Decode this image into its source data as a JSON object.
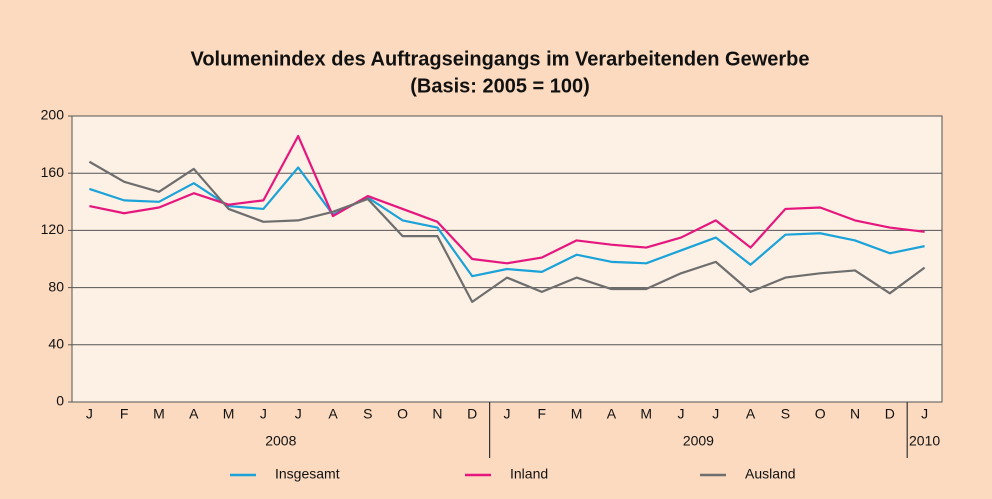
{
  "chart_data": {
    "type": "line",
    "title": "Volumenindex des Auftragseingangs im Verarbeitenden Gewerbe",
    "subtitle": "(Basis: 2005 = 100)",
    "categories": [
      "J",
      "F",
      "M",
      "A",
      "M",
      "J",
      "J",
      "A",
      "S",
      "O",
      "N",
      "D",
      "J",
      "F",
      "M",
      "A",
      "M",
      "J",
      "J",
      "A",
      "S",
      "O",
      "N",
      "D",
      "J"
    ],
    "years": [
      "2008",
      "2009",
      "2010"
    ],
    "series": [
      {
        "name": "Insgesamt",
        "color": "#1ba3d9",
        "values": [
          149,
          141,
          140,
          153,
          137,
          135,
          164,
          131,
          143,
          127,
          122,
          88,
          93,
          91,
          103,
          98,
          97,
          106,
          115,
          96,
          117,
          118,
          113,
          104,
          109
        ]
      },
      {
        "name": "Inland",
        "color": "#e5177e",
        "values": [
          137,
          132,
          136,
          146,
          138,
          141,
          186,
          130,
          144,
          135,
          126,
          100,
          97,
          101,
          113,
          110,
          108,
          115,
          127,
          108,
          135,
          136,
          127,
          122,
          119
        ]
      },
      {
        "name": "Ausland",
        "color": "#6e6e6e",
        "values": [
          168,
          154,
          147,
          163,
          135,
          126,
          127,
          133,
          142,
          116,
          116,
          70,
          87,
          77,
          87,
          79,
          79,
          90,
          98,
          77,
          87,
          90,
          92,
          76,
          94
        ]
      }
    ],
    "ylim": [
      0,
      200
    ],
    "yticks": [
      0,
      40,
      80,
      120,
      160,
      200
    ],
    "grid": true,
    "legend": "bottom"
  }
}
